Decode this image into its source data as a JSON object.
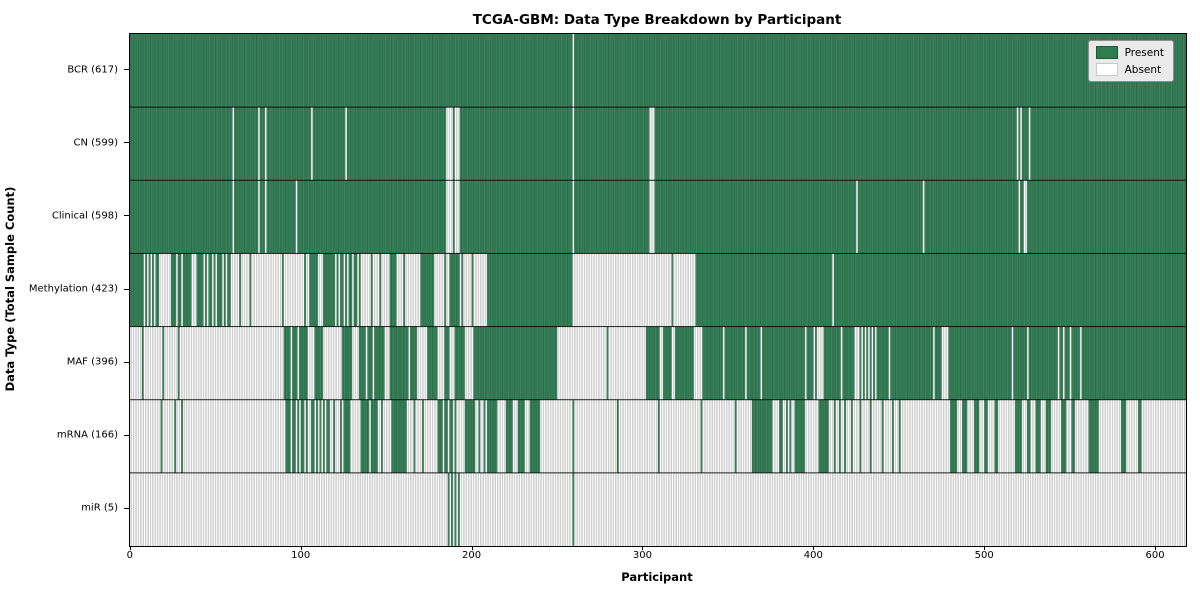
{
  "title": "TCGA-GBM: Data Type Breakdown by Participant",
  "xlabel": "Participant",
  "ylabel": "Data Type (Total Sample Count)",
  "legend": {
    "present_label": "Present",
    "absent_label": "Absent"
  },
  "colors": {
    "present_fill": "#37855B",
    "present_edge": "rgba(0,35,20,0.45)",
    "absent_fill": "#ffffff",
    "absent_edge": "rgba(110,110,110,0.60)",
    "legend_present": "#2E7D4F",
    "legend_absent": "#ffffff",
    "row_separator": "rgba(0,0,0,0.85)"
  },
  "chart_data": {
    "type": "heatmap",
    "title": "TCGA-GBM: Data Type Breakdown by Participant",
    "xlabel": "Participant",
    "ylabel": "Data Type (Total Sample Count)",
    "legend_entries": [
      "Present",
      "Absent"
    ],
    "legend_position": "upper right",
    "n_participants": 618,
    "x_ticks": [
      0,
      100,
      200,
      300,
      400,
      500,
      600
    ],
    "rows": [
      {
        "label": "BCR (617)",
        "name": "BCR",
        "present_count": 617,
        "default": "present",
        "absent_ranges": [
          [
            259,
            259
          ]
        ]
      },
      {
        "label": "CN (599)",
        "name": "CN",
        "present_count": 599,
        "default": "present",
        "absent_ranges": [
          [
            60,
            60
          ],
          [
            75,
            75
          ],
          [
            79,
            79
          ],
          [
            106,
            106
          ],
          [
            126,
            126
          ],
          [
            185,
            188
          ],
          [
            190,
            192
          ],
          [
            259,
            259
          ],
          [
            304,
            306
          ],
          [
            519,
            519
          ],
          [
            521,
            521
          ],
          [
            526,
            526
          ]
        ]
      },
      {
        "label": "Clinical (598)",
        "name": "Clinical",
        "present_count": 598,
        "default": "present",
        "absent_ranges": [
          [
            60,
            60
          ],
          [
            75,
            75
          ],
          [
            79,
            79
          ],
          [
            97,
            97
          ],
          [
            185,
            188
          ],
          [
            190,
            192
          ],
          [
            259,
            259
          ],
          [
            304,
            306
          ],
          [
            425,
            425
          ],
          [
            464,
            464
          ],
          [
            520,
            520
          ],
          [
            523,
            524
          ]
        ]
      },
      {
        "label": "Methylation (423)",
        "name": "Methylation",
        "present_count": 423,
        "default": "present",
        "absent_ranges": [
          [
            8,
            8
          ],
          [
            10,
            10
          ],
          [
            12,
            12
          ],
          [
            14,
            14
          ],
          [
            17,
            23
          ],
          [
            27,
            27
          ],
          [
            30,
            30
          ],
          [
            36,
            38
          ],
          [
            43,
            43
          ],
          [
            45,
            45
          ],
          [
            48,
            48
          ],
          [
            50,
            50
          ],
          [
            54,
            54
          ],
          [
            56,
            56
          ],
          [
            59,
            63
          ],
          [
            65,
            69
          ],
          [
            71,
            88
          ],
          [
            90,
            101
          ],
          [
            103,
            104
          ],
          [
            110,
            112
          ],
          [
            120,
            120
          ],
          [
            122,
            122
          ],
          [
            125,
            125
          ],
          [
            127,
            127
          ],
          [
            130,
            130
          ],
          [
            133,
            133
          ],
          [
            135,
            140
          ],
          [
            142,
            145
          ],
          [
            147,
            151
          ],
          [
            156,
            159
          ],
          [
            161,
            169
          ],
          [
            178,
            183
          ],
          [
            185,
            186
          ],
          [
            193,
            193
          ],
          [
            195,
            199
          ],
          [
            201,
            208
          ],
          [
            259,
            316
          ],
          [
            318,
            330
          ],
          [
            411,
            411
          ]
        ]
      },
      {
        "label": "MAF (396)",
        "name": "MAF",
        "present_count": 396,
        "default": "present",
        "absent_ranges": [
          [
            0,
            6
          ],
          [
            8,
            18
          ],
          [
            20,
            27
          ],
          [
            29,
            89
          ],
          [
            94,
            94
          ],
          [
            98,
            98
          ],
          [
            104,
            107
          ],
          [
            113,
            123
          ],
          [
            130,
            133
          ],
          [
            138,
            138
          ],
          [
            142,
            142
          ],
          [
            149,
            151
          ],
          [
            163,
            163
          ],
          [
            168,
            173
          ],
          [
            180,
            183
          ],
          [
            187,
            189
          ],
          [
            196,
            200
          ],
          [
            250,
            278
          ],
          [
            280,
            301
          ],
          [
            310,
            311
          ],
          [
            317,
            318
          ],
          [
            330,
            334
          ],
          [
            347,
            347
          ],
          [
            360,
            360
          ],
          [
            369,
            369
          ],
          [
            395,
            395
          ],
          [
            400,
            400
          ],
          [
            402,
            405
          ],
          [
            416,
            416
          ],
          [
            424,
            426
          ],
          [
            428,
            428
          ],
          [
            430,
            430
          ],
          [
            432,
            432
          ],
          [
            434,
            434
          ],
          [
            436,
            436
          ],
          [
            444,
            444
          ],
          [
            470,
            470
          ],
          [
            475,
            478
          ],
          [
            516,
            516
          ],
          [
            525,
            525
          ],
          [
            543,
            543
          ],
          [
            546,
            546
          ],
          [
            550,
            550
          ],
          [
            556,
            556
          ]
        ]
      },
      {
        "label": "mRNA (166)",
        "name": "mRNA",
        "present_count": 166,
        "default": "absent",
        "present_ranges": [
          [
            18,
            18
          ],
          [
            26,
            26
          ],
          [
            30,
            30
          ],
          [
            91,
            93
          ],
          [
            95,
            96
          ],
          [
            98,
            98
          ],
          [
            100,
            101
          ],
          [
            103,
            103
          ],
          [
            106,
            107
          ],
          [
            109,
            109
          ],
          [
            111,
            111
          ],
          [
            113,
            113
          ],
          [
            115,
            116
          ],
          [
            119,
            119
          ],
          [
            123,
            123
          ],
          [
            125,
            128
          ],
          [
            135,
            139
          ],
          [
            141,
            144
          ],
          [
            147,
            147
          ],
          [
            153,
            161
          ],
          [
            166,
            166
          ],
          [
            171,
            171
          ],
          [
            180,
            182
          ],
          [
            184,
            185
          ],
          [
            187,
            188
          ],
          [
            190,
            190
          ],
          [
            196,
            201
          ],
          [
            204,
            204
          ],
          [
            207,
            207
          ],
          [
            209,
            214
          ],
          [
            220,
            223
          ],
          [
            227,
            230
          ],
          [
            234,
            239
          ],
          [
            259,
            259
          ],
          [
            285,
            285
          ],
          [
            309,
            309
          ],
          [
            334,
            334
          ],
          [
            354,
            354
          ],
          [
            364,
            375
          ],
          [
            380,
            381
          ],
          [
            384,
            384
          ],
          [
            386,
            386
          ],
          [
            389,
            394
          ],
          [
            403,
            408
          ],
          [
            412,
            412
          ],
          [
            415,
            415
          ],
          [
            418,
            418
          ],
          [
            422,
            422
          ],
          [
            427,
            427
          ],
          [
            433,
            433
          ],
          [
            440,
            440
          ],
          [
            446,
            446
          ],
          [
            450,
            450
          ],
          [
            480,
            483
          ],
          [
            487,
            489
          ],
          [
            494,
            496
          ],
          [
            500,
            501
          ],
          [
            506,
            507
          ],
          [
            518,
            521
          ],
          [
            525,
            526
          ],
          [
            530,
            532
          ],
          [
            536,
            538
          ],
          [
            545,
            547
          ],
          [
            551,
            552
          ],
          [
            561,
            566
          ],
          [
            580,
            582
          ],
          [
            590,
            591
          ]
        ]
      },
      {
        "label": "miR (5)",
        "name": "miR",
        "present_count": 5,
        "default": "absent",
        "present_ranges": [
          [
            186,
            186
          ],
          [
            188,
            188
          ],
          [
            190,
            190
          ],
          [
            192,
            192
          ],
          [
            259,
            259
          ]
        ]
      }
    ]
  }
}
